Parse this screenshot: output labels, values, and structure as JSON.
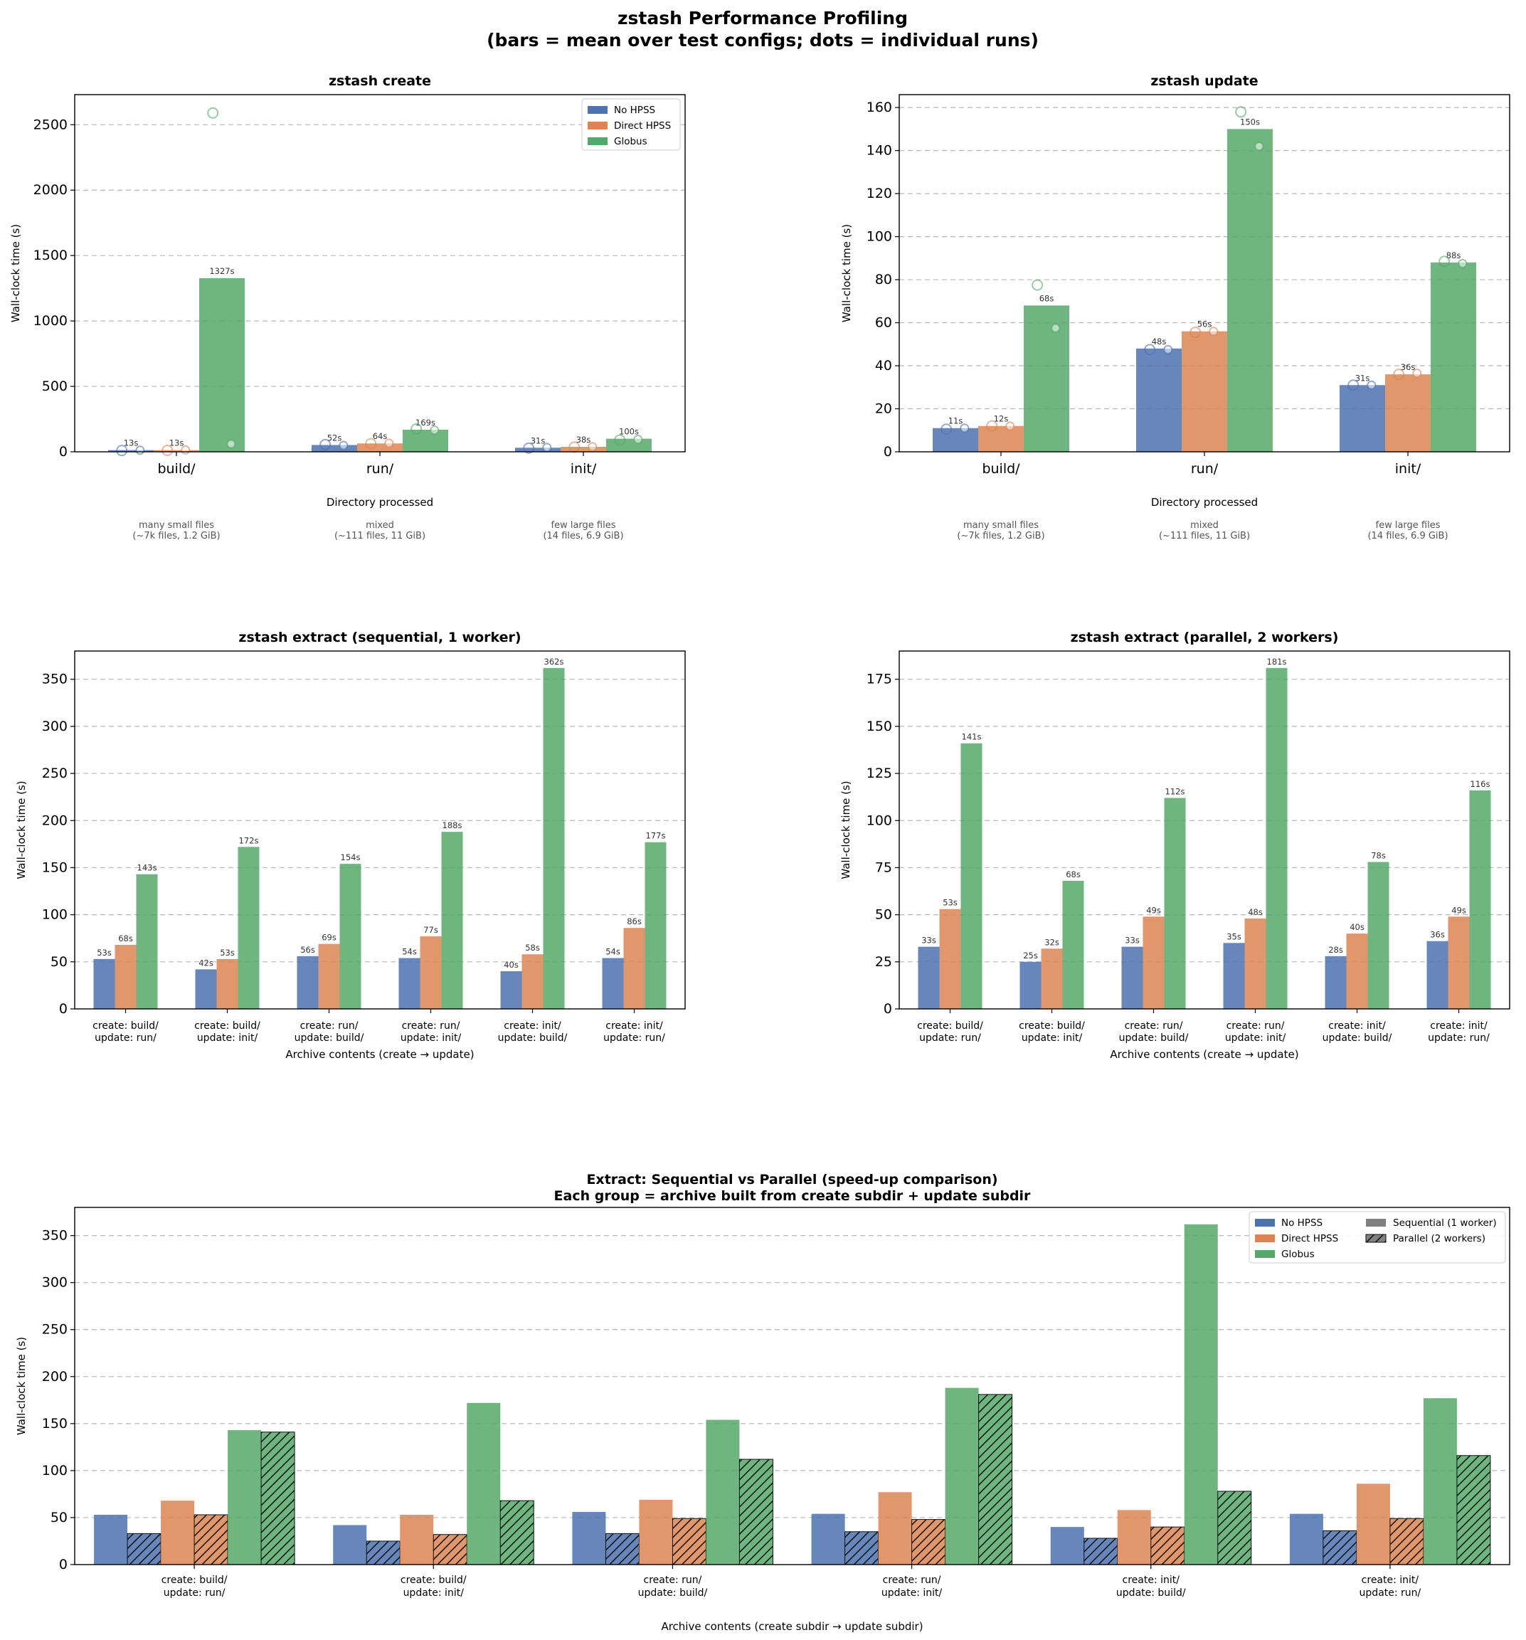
{
  "figure": {
    "title_line1": "zstash Performance Profiling",
    "title_line2": "(bars = mean over test configs; dots = individual runs)"
  },
  "colors": {
    "no_hpss": "#4c72b0",
    "direct_hpss": "#dd8452",
    "globus": "#55a868"
  },
  "legend": {
    "no_hpss": "No HPSS",
    "direct_hpss": "Direct HPSS",
    "globus": "Globus",
    "sequential": "Sequential (1 worker)",
    "parallel": "Parallel (2 workers)"
  },
  "chart_data": [
    {
      "id": "create",
      "type": "bar",
      "title": "zstash create",
      "xlabel": "Directory processed",
      "ylabel": "Wall-clock time (s)",
      "ylim": [
        0,
        2730
      ],
      "yticks": [
        0,
        500,
        1000,
        1500,
        2000,
        2500
      ],
      "legend_position": "top-right",
      "categories": [
        "build/",
        "run/",
        "init/"
      ],
      "subtitles": [
        "many small files\n(~7k files, 1.2 GiB)",
        "mixed\n(~111 files, 11 GiB)",
        "few large files\n(14 files, 6.9 GiB)"
      ],
      "series": [
        {
          "name": "No HPSS",
          "key": "no_hpss",
          "values": [
            13,
            52,
            31
          ],
          "labels": [
            "13s",
            "52s",
            "31s"
          ],
          "runs": [
            [
              10,
              12
            ],
            [
              55,
              49
            ],
            [
              28,
              33
            ]
          ]
        },
        {
          "name": "Direct HPSS",
          "key": "direct_hpss",
          "values": [
            13,
            64,
            38
          ],
          "labels": [
            "13s",
            "64s",
            "38s"
          ],
          "runs": [
            [
              11,
              14
            ],
            [
              62,
              66
            ],
            [
              36,
              39
            ]
          ]
        },
        {
          "name": "Globus",
          "key": "globus",
          "values": [
            1327,
            169,
            100
          ],
          "labels": [
            "1327s",
            "169s",
            "100s"
          ],
          "runs": [
            [
              2590,
              60
            ],
            [
              175,
              165
            ],
            [
              90,
              95
            ]
          ]
        }
      ]
    },
    {
      "id": "update",
      "type": "bar",
      "title": "zstash update",
      "xlabel": "Directory processed",
      "ylabel": "Wall-clock time (s)",
      "ylim": [
        0,
        166
      ],
      "yticks": [
        0,
        20,
        40,
        60,
        80,
        100,
        120,
        140,
        160
      ],
      "categories": [
        "build/",
        "run/",
        "init/"
      ],
      "subtitles": [
        "many small files\n(~7k files, 1.2 GiB)",
        "mixed\n(~111 files, 11 GiB)",
        "few large files\n(14 files, 6.9 GiB)"
      ],
      "series": [
        {
          "name": "No HPSS",
          "key": "no_hpss",
          "values": [
            11,
            48,
            31
          ],
          "labels": [
            "11s",
            "48s",
            "31s"
          ],
          "runs": [
            [
              10.5,
              11
            ],
            [
              47.5,
              47.5
            ],
            [
              31,
              31
            ]
          ]
        },
        {
          "name": "Direct HPSS",
          "key": "direct_hpss",
          "values": [
            12,
            56,
            36
          ],
          "labels": [
            "12s",
            "56s",
            "36s"
          ],
          "runs": [
            [
              12,
              12
            ],
            [
              55.5,
              56
            ],
            [
              36,
              36.5
            ]
          ]
        },
        {
          "name": "Globus",
          "key": "globus",
          "values": [
            68,
            150,
            88
          ],
          "labels": [
            "68s",
            "150s",
            "88s"
          ],
          "runs": [
            [
              77.5,
              57.5
            ],
            [
              158,
              142
            ],
            [
              88.5,
              87.5
            ]
          ]
        }
      ]
    },
    {
      "id": "extract_seq",
      "type": "bar",
      "title": "zstash extract  (sequential, 1 worker)",
      "xlabel": "Archive contents (create → update)",
      "ylabel": "Wall-clock time (s)",
      "ylim": [
        0,
        380
      ],
      "yticks": [
        0,
        50,
        100,
        150,
        200,
        250,
        300,
        350
      ],
      "categories": [
        "create: build/\nupdate: run/",
        "create: build/\nupdate: init/",
        "create: run/\nupdate: build/",
        "create: run/\nupdate: init/",
        "create: init/\nupdate: build/",
        "create: init/\nupdate: run/"
      ],
      "series": [
        {
          "name": "No HPSS",
          "key": "no_hpss",
          "values": [
            53,
            42,
            56,
            54,
            40,
            54
          ],
          "labels": [
            "53s",
            "42s",
            "56s",
            "54s",
            "40s",
            "54s"
          ]
        },
        {
          "name": "Direct HPSS",
          "key": "direct_hpss",
          "values": [
            68,
            53,
            69,
            77,
            58,
            86
          ],
          "labels": [
            "68s",
            "53s",
            "69s",
            "77s",
            "58s",
            "86s"
          ]
        },
        {
          "name": "Globus",
          "key": "globus",
          "values": [
            143,
            172,
            154,
            188,
            362,
            177
          ],
          "labels": [
            "143s",
            "172s",
            "154s",
            "188s",
            "362s",
            "177s"
          ]
        }
      ]
    },
    {
      "id": "extract_par",
      "type": "bar",
      "title": "zstash extract  (parallel, 2 workers)",
      "xlabel": "Archive contents (create → update)",
      "ylabel": "Wall-clock time (s)",
      "ylim": [
        0,
        190
      ],
      "yticks": [
        0,
        25,
        50,
        75,
        100,
        125,
        150,
        175
      ],
      "categories": [
        "create: build/\nupdate: run/",
        "create: build/\nupdate: init/",
        "create: run/\nupdate: build/",
        "create: run/\nupdate: init/",
        "create: init/\nupdate: build/",
        "create: init/\nupdate: run/"
      ],
      "series": [
        {
          "name": "No HPSS",
          "key": "no_hpss",
          "values": [
            33,
            25,
            33,
            35,
            28,
            36
          ],
          "labels": [
            "33s",
            "25s",
            "33s",
            "35s",
            "28s",
            "36s"
          ]
        },
        {
          "name": "Direct HPSS",
          "key": "direct_hpss",
          "values": [
            53,
            32,
            49,
            48,
            40,
            49
          ],
          "labels": [
            "53s",
            "32s",
            "49s",
            "48s",
            "40s",
            "49s"
          ]
        },
        {
          "name": "Globus",
          "key": "globus",
          "values": [
            141,
            68,
            112,
            181,
            78,
            116
          ],
          "labels": [
            "141s",
            "68s",
            "112s",
            "181s",
            "78s",
            "116s"
          ]
        }
      ]
    },
    {
      "id": "compare",
      "type": "bar",
      "title_line1": "Extract: Sequential vs Parallel (speed-up comparison)",
      "title_line2": "Each group = archive built from create subdir + update subdir",
      "xlabel": "Archive contents (create subdir → update subdir)",
      "ylabel": "Wall-clock time (s)",
      "ylim": [
        0,
        380
      ],
      "yticks": [
        0,
        50,
        100,
        150,
        200,
        250,
        300,
        350
      ],
      "legend_position": "top-right",
      "categories": [
        "create: build/\nupdate: run/",
        "create: build/\nupdate: init/",
        "create: run/\nupdate: build/",
        "create: run/\nupdate: init/",
        "create: init/\nupdate: build/",
        "create: init/\nupdate: run/"
      ],
      "series": [
        {
          "name": "No HPSS",
          "key": "no_hpss",
          "sequential": [
            53,
            42,
            56,
            54,
            40,
            54
          ],
          "parallel": [
            33,
            25,
            33,
            35,
            28,
            36
          ]
        },
        {
          "name": "Direct HPSS",
          "key": "direct_hpss",
          "sequential": [
            68,
            53,
            69,
            77,
            58,
            86
          ],
          "parallel": [
            53,
            32,
            49,
            48,
            40,
            49
          ]
        },
        {
          "name": "Globus",
          "key": "globus",
          "sequential": [
            143,
            172,
            154,
            188,
            362,
            177
          ],
          "parallel": [
            141,
            68,
            112,
            181,
            78,
            116
          ]
        }
      ]
    }
  ]
}
